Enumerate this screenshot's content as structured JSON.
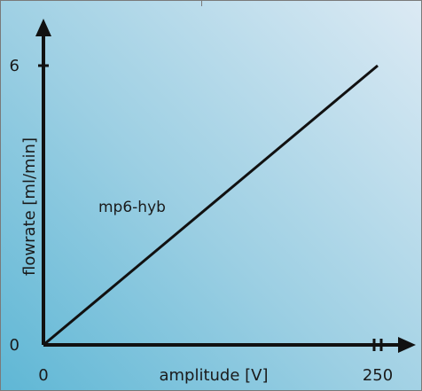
{
  "chart_data": {
    "type": "line",
    "xlabel": "amplitude [V]",
    "ylabel": "flowrate [ml/min]",
    "xlim": [
      0,
      250
    ],
    "ylim": [
      0,
      6
    ],
    "xticks": [
      "0",
      "250"
    ],
    "yticks": [
      "0",
      "6"
    ],
    "series": [
      {
        "name": "mp6-hyb",
        "x": [
          0,
          250
        ],
        "y": [
          0,
          6
        ]
      }
    ],
    "grid": false,
    "colors": {
      "axis": "#111111",
      "line": "#111111",
      "background_start": "#5fb7d5",
      "background_end": "#dceaf4"
    }
  }
}
